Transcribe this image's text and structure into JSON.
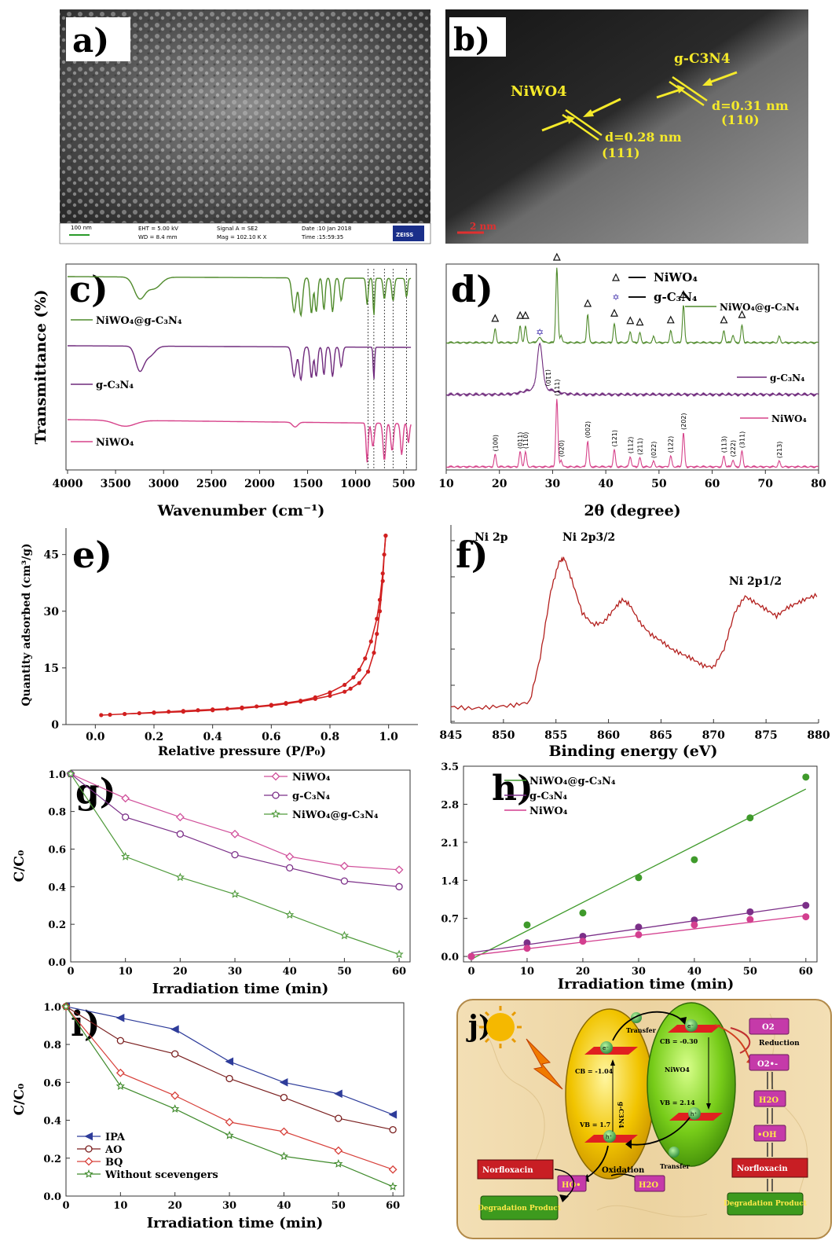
{
  "panels": {
    "a": {
      "label": "a)",
      "scale_bar": "100 nm",
      "info": [
        "EHT = 5.00 kV",
        "WD = 8.4 mm",
        "Signal A = SE2",
        "Mag = 102.10 K X",
        "Date :10 Jan 2018",
        "Time :15:59:35"
      ],
      "logo": "ZEISS"
    },
    "b": {
      "label": "b)",
      "annotations": [
        "NiWO4",
        "d=0.28 nm",
        "(111)",
        "g-C3N4",
        "d=0.31 nm",
        "(110)"
      ],
      "scale_bar": "2 nm"
    },
    "c": {
      "label": "c)"
    },
    "d": {
      "label": "d)"
    },
    "e": {
      "label": "e)"
    },
    "f": {
      "label": "f)"
    },
    "g": {
      "label": "g)"
    },
    "h": {
      "label": "h)"
    },
    "i": {
      "label": "i)"
    },
    "j": {
      "label": "j)",
      "texts": {
        "transfer_top": "Transfer",
        "cb_g": "CB = -1.04",
        "vb_g": "VB = 1.7",
        "g_name": "g-C3N4",
        "cb_n": "CB = -0.30",
        "vb_n": "VB = 2.14",
        "n_name": "NiWO4",
        "reduction": "Reduction",
        "o2": "O2",
        "o2rad": "O2•-",
        "h2o_r": "H2O",
        "oh": "•OH",
        "norfl_r": "Norfloxacin",
        "deg_r": "Degradation Product",
        "oxidation": "Oxidation",
        "transfer_bottom": "Transfer",
        "ho": "HO•",
        "h2o_l": "H2O",
        "norfl_l": "Norfloxacin",
        "deg_l": "Degradation Product",
        "e_minus": "e⁻",
        "h_plus": "h⁺"
      }
    }
  },
  "chart_data": [
    {
      "id": "c",
      "type": "line",
      "xlabel": "Wavenumber (cm⁻¹)",
      "ylabel": "Transmittance (%)",
      "xlim": [
        4000,
        400
      ],
      "xticks": [
        4000,
        3500,
        3000,
        2500,
        2000,
        1500,
        1000,
        500
      ],
      "series": [
        {
          "name": "NiWO₄@g-C₃N₄",
          "color": "#4f8a2b"
        },
        {
          "name": "g-C₃N₄",
          "color": "#6f2a7c"
        },
        {
          "name": "NiWO₄",
          "color": "#d6428a"
        }
      ],
      "vlines": [
        870,
        810,
        700,
        610,
        470
      ]
    },
    {
      "id": "d",
      "type": "line",
      "xlabel": "2θ (degree)",
      "xlim": [
        10,
        80
      ],
      "xticks": [
        10,
        20,
        30,
        40,
        50,
        60,
        70,
        80
      ],
      "legend": [
        "NiWO₄",
        "g-C₃N₄"
      ],
      "series": [
        {
          "name": "NiWO₄@g-C₃N₄",
          "color": "#4f8a2b"
        },
        {
          "name": "g-C₃N₄",
          "color": "#6f2a7c"
        },
        {
          "name": "NiWO₄",
          "color": "#d6428a"
        }
      ],
      "peaks": [
        {
          "x": 19.2,
          "hkl": "(100)",
          "h": 0.18
        },
        {
          "x": 23.9,
          "hkl": "(011)",
          "h": 0.22
        },
        {
          "x": 24.9,
          "hkl": "(110)",
          "h": 0.22
        },
        {
          "x": 30.8,
          "hkl": "(111)",
          "h": 1.0
        },
        {
          "x": 31.6,
          "hkl": "(020)",
          "h": 0.1
        },
        {
          "x": 36.6,
          "hkl": "(002)",
          "h": 0.38
        },
        {
          "x": 41.6,
          "hkl": "(121)",
          "h": 0.25
        },
        {
          "x": 44.6,
          "hkl": "(112)",
          "h": 0.15
        },
        {
          "x": 46.4,
          "hkl": "(211)",
          "h": 0.13
        },
        {
          "x": 49.0,
          "hkl": "(022)",
          "h": 0.08
        },
        {
          "x": 52.2,
          "hkl": "(122)",
          "h": 0.16
        },
        {
          "x": 54.6,
          "hkl": "(202)",
          "h": 0.5
        },
        {
          "x": 62.2,
          "hkl": "(113)",
          "h": 0.16
        },
        {
          "x": 63.9,
          "hkl": "(222)",
          "h": 0.1
        },
        {
          "x": 65.6,
          "hkl": "(311)",
          "h": 0.23
        },
        {
          "x": 72.6,
          "hkl": "(213)",
          "h": 0.08
        }
      ],
      "gcn_peak": {
        "x": 27.6,
        "hkl": "(110)"
      }
    },
    {
      "id": "e",
      "type": "line",
      "xlabel": "Relative pressure (P/P₀)",
      "ylabel": "Quantity adsorbed (cm³/g)",
      "xlim": [
        -0.1,
        1.1
      ],
      "ylim": [
        0,
        52
      ],
      "xticks": [
        0.0,
        0.2,
        0.4,
        0.6,
        0.8,
        1.0
      ],
      "yticks": [
        0,
        15,
        30,
        45
      ],
      "color": "#d11f1f",
      "adsorption": [
        [
          0.02,
          2.5
        ],
        [
          0.05,
          2.6
        ],
        [
          0.1,
          2.8
        ],
        [
          0.15,
          3.0
        ],
        [
          0.2,
          3.2
        ],
        [
          0.25,
          3.4
        ],
        [
          0.3,
          3.6
        ],
        [
          0.35,
          3.8
        ],
        [
          0.4,
          4.0
        ],
        [
          0.45,
          4.2
        ],
        [
          0.5,
          4.5
        ],
        [
          0.55,
          4.8
        ],
        [
          0.6,
          5.2
        ],
        [
          0.65,
          5.7
        ],
        [
          0.7,
          6.3
        ],
        [
          0.75,
          7.2
        ],
        [
          0.8,
          8.5
        ],
        [
          0.85,
          10.5
        ],
        [
          0.88,
          12.5
        ],
        [
          0.9,
          14.5
        ],
        [
          0.92,
          17.5
        ],
        [
          0.94,
          22
        ],
        [
          0.96,
          28
        ],
        [
          0.97,
          33
        ],
        [
          0.98,
          40
        ],
        [
          0.99,
          50
        ]
      ],
      "desorption": [
        [
          0.99,
          50
        ],
        [
          0.985,
          45
        ],
        [
          0.98,
          38
        ],
        [
          0.97,
          30
        ],
        [
          0.96,
          24
        ],
        [
          0.95,
          19
        ],
        [
          0.93,
          14
        ],
        [
          0.9,
          11
        ],
        [
          0.87,
          9.5
        ],
        [
          0.85,
          8.7
        ],
        [
          0.8,
          7.6
        ],
        [
          0.75,
          6.8
        ],
        [
          0.7,
          6.1
        ],
        [
          0.65,
          5.5
        ],
        [
          0.6,
          5.0
        ],
        [
          0.5,
          4.3
        ],
        [
          0.4,
          3.8
        ],
        [
          0.3,
          3.4
        ],
        [
          0.2,
          3.1
        ],
        [
          0.1,
          2.8
        ]
      ]
    },
    {
      "id": "f",
      "type": "line",
      "xlabel": "Binding energy (eV)",
      "xlim": [
        845,
        880
      ],
      "xticks": [
        845,
        850,
        855,
        860,
        865,
        870,
        875,
        880
      ],
      "annotations": [
        "Ni 2p",
        "Ni 2p3/2",
        "Ni 2p1/2"
      ],
      "color": "#b3201e",
      "points": [
        [
          845,
          0.05
        ],
        [
          847,
          0.04
        ],
        [
          849,
          0.05
        ],
        [
          851,
          0.06
        ],
        [
          852.5,
          0.08
        ],
        [
          853.5,
          0.35
        ],
        [
          854.5,
          0.75
        ],
        [
          855.3,
          0.93
        ],
        [
          855.8,
          0.95
        ],
        [
          856.5,
          0.82
        ],
        [
          857.5,
          0.62
        ],
        [
          858.5,
          0.55
        ],
        [
          859.5,
          0.56
        ],
        [
          860.5,
          0.64
        ],
        [
          861.3,
          0.7
        ],
        [
          862,
          0.67
        ],
        [
          863,
          0.56
        ],
        [
          864,
          0.49
        ],
        [
          865,
          0.45
        ],
        [
          866,
          0.4
        ],
        [
          867,
          0.37
        ],
        [
          868,
          0.34
        ],
        [
          869,
          0.3
        ],
        [
          870,
          0.29
        ],
        [
          871,
          0.4
        ],
        [
          872,
          0.62
        ],
        [
          873,
          0.72
        ],
        [
          874,
          0.68
        ],
        [
          875,
          0.64
        ],
        [
          876,
          0.6
        ],
        [
          877,
          0.65
        ],
        [
          878,
          0.68
        ],
        [
          879,
          0.71
        ],
        [
          880,
          0.73
        ]
      ]
    },
    {
      "id": "g",
      "type": "line",
      "xlabel": "Irradiation time (min)",
      "ylabel": "C/C₀",
      "xlim": [
        0,
        62
      ],
      "ylim": [
        0,
        1.02
      ],
      "xticks": [
        0,
        10,
        20,
        30,
        40,
        50,
        60
      ],
      "yticks": [
        0.0,
        0.2,
        0.4,
        0.6,
        0.8,
        1.0
      ],
      "x": [
        0,
        10,
        20,
        30,
        40,
        50,
        60
      ],
      "series": [
        {
          "name": "NiWO₄",
          "color": "#d04f9a",
          "marker": "diamond",
          "values": [
            1.0,
            0.87,
            0.77,
            0.68,
            0.56,
            0.51,
            0.49
          ]
        },
        {
          "name": "g-C₃N₄",
          "color": "#7b2f88",
          "marker": "circle",
          "values": [
            1.0,
            0.77,
            0.68,
            0.57,
            0.5,
            0.43,
            0.4
          ]
        },
        {
          "name": "NiWO₄@g-C₃N₄",
          "color": "#4f9a3b",
          "marker": "star",
          "values": [
            1.0,
            0.56,
            0.45,
            0.36,
            0.25,
            0.14,
            0.04
          ]
        }
      ]
    },
    {
      "id": "h",
      "type": "scatter",
      "xlabel": "Irradiation time (min)",
      "xlim": [
        0,
        62
      ],
      "ylim": [
        -0.1,
        3.5
      ],
      "xticks": [
        0,
        10,
        20,
        30,
        40,
        50,
        60
      ],
      "yticks": [
        0.0,
        0.7,
        1.4,
        2.1,
        2.8,
        3.5
      ],
      "x": [
        0,
        10,
        20,
        30,
        40,
        50,
        60
      ],
      "series": [
        {
          "name": "NiWO₄@g-C₃N₄",
          "color": "#3f9a2b",
          "values": [
            0.0,
            0.58,
            0.8,
            1.45,
            1.78,
            2.55,
            3.3
          ],
          "fit": [
            -0.05,
            3.08
          ]
        },
        {
          "name": "g-C₃N₄",
          "color": "#7b2f88",
          "values": [
            0.0,
            0.25,
            0.37,
            0.54,
            0.67,
            0.82,
            0.94
          ],
          "fit": [
            0.07,
            0.95
          ]
        },
        {
          "name": "NiWO₄",
          "color": "#d33f8f",
          "values": [
            0.0,
            0.15,
            0.28,
            0.4,
            0.58,
            0.68,
            0.73
          ],
          "fit": [
            0.02,
            0.75
          ]
        }
      ]
    },
    {
      "id": "i",
      "type": "line",
      "xlabel": "Irradiation time (min)",
      "ylabel": "C/C₀",
      "xlim": [
        0,
        62
      ],
      "ylim": [
        0,
        1.02
      ],
      "xticks": [
        0,
        10,
        20,
        30,
        40,
        50,
        60
      ],
      "yticks": [
        0.0,
        0.2,
        0.4,
        0.6,
        0.8,
        1.0
      ],
      "x": [
        0,
        10,
        20,
        30,
        40,
        50,
        60
      ],
      "series": [
        {
          "name": "IPA",
          "color": "#2e3c9a",
          "marker": "triangle",
          "values": [
            1.0,
            0.94,
            0.88,
            0.71,
            0.6,
            0.54,
            0.43
          ]
        },
        {
          "name": "AO",
          "color": "#7a1f1f",
          "marker": "circle",
          "values": [
            1.0,
            0.82,
            0.75,
            0.62,
            0.52,
            0.41,
            0.35
          ]
        },
        {
          "name": "BQ",
          "color": "#d7403a",
          "marker": "diamond",
          "values": [
            1.0,
            0.65,
            0.53,
            0.39,
            0.34,
            0.24,
            0.14
          ]
        },
        {
          "name": "Without scevengers",
          "color": "#3f8a2b",
          "marker": "star",
          "values": [
            1.0,
            0.58,
            0.46,
            0.32,
            0.21,
            0.17,
            0.05
          ]
        }
      ]
    }
  ]
}
